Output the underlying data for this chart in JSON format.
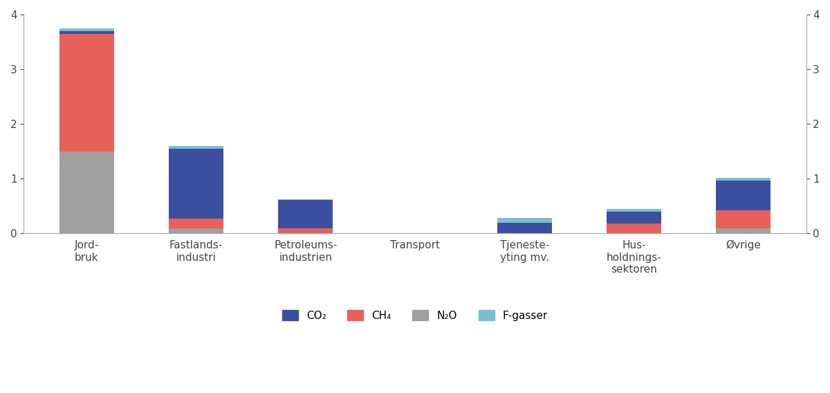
{
  "categories": [
    "Jord-\nbruk",
    "Fastlands-\nindustri",
    "Petroleums-\nindustrien",
    "Transport",
    "Tjeneste-\nyting mv.",
    "Hus-\nholdnings-\nsektoren",
    "Øvrige"
  ],
  "co2": [
    0.05,
    1.28,
    0.52,
    0.0,
    0.2,
    0.22,
    0.55
  ],
  "ch4": [
    2.15,
    0.17,
    0.09,
    0.0,
    0.0,
    0.18,
    0.32
  ],
  "n2o": [
    1.5,
    0.1,
    0.0,
    0.0,
    0.0,
    0.0,
    0.1
  ],
  "fgasser": [
    0.05,
    0.05,
    0.02,
    0.0,
    0.08,
    0.05,
    0.05
  ],
  "co2_color": "#3b4fa0",
  "ch4_color": "#e8605a",
  "n2o_color": "#a0a0a0",
  "fgasser_color": "#7abfcf",
  "ylim": [
    0,
    4
  ],
  "yticks": [
    0,
    1,
    2,
    3,
    4
  ],
  "background_color": "#ffffff",
  "bar_width": 0.5
}
